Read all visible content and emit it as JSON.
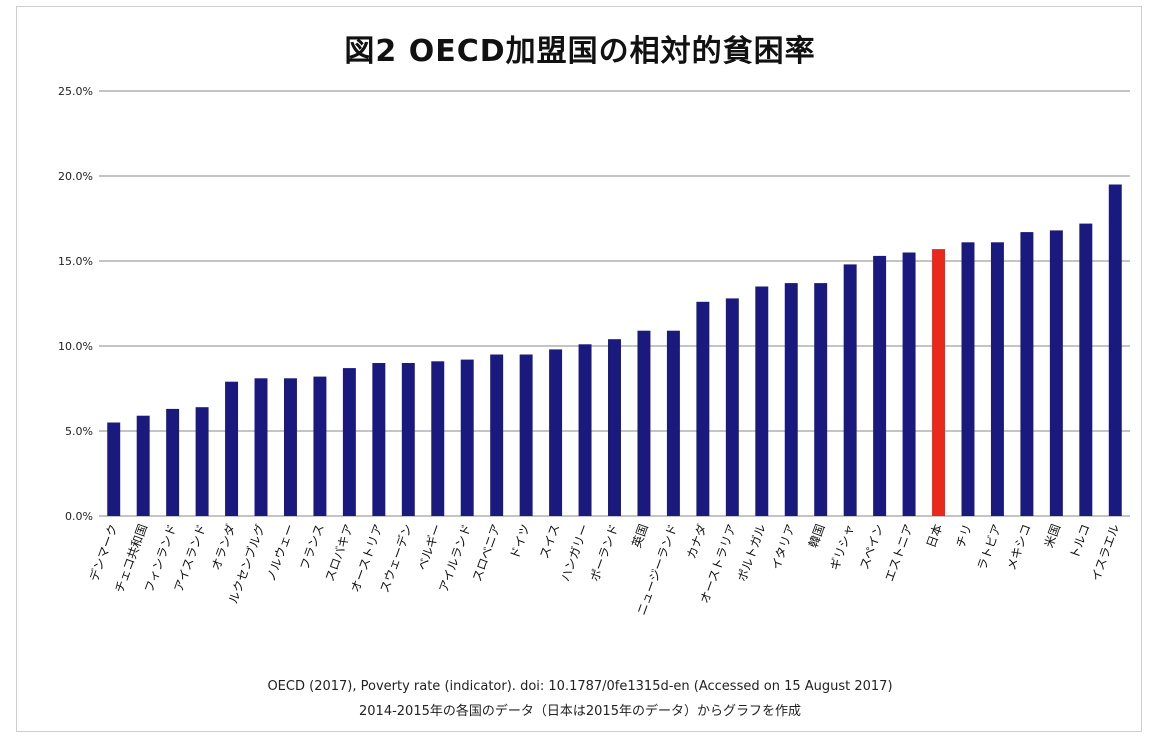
{
  "chart_data": {
    "type": "bar",
    "title": "図2 OECD加盟国の相対的貧困率",
    "xlabel": "",
    "ylabel": "",
    "ylim": [
      0,
      25
    ],
    "yticks": [
      0,
      5,
      10,
      15,
      20,
      25
    ],
    "ytick_labels": [
      "0.0%",
      "5.0%",
      "10.0%",
      "15.0%",
      "20.0%",
      "25.0%"
    ],
    "grid": true,
    "categories": [
      "デンマーク",
      "チェコ共和国",
      "フィンランド",
      "アイスランド",
      "オランダ",
      "ルクセンブルグ",
      "ノルウェー",
      "フランス",
      "スロバキア",
      "オーストリア",
      "スウェーデン",
      "ベルギー",
      "アイルランド",
      "スロベニア",
      "ドイツ",
      "スイス",
      "ハンガリー",
      "ポーランド",
      "英国",
      "ニュージーランド",
      "カナダ",
      "オーストラリア",
      "ポルトガル",
      "イタリア",
      "韓国",
      "ギリシャ",
      "スペイン",
      "エストニア",
      "日本",
      "チリ",
      "ラトビア",
      "メキシコ",
      "米国",
      "トルコ",
      "イスラエル"
    ],
    "values": [
      5.5,
      5.9,
      6.3,
      6.4,
      7.9,
      8.1,
      8.1,
      8.2,
      8.7,
      9.0,
      9.0,
      9.1,
      9.2,
      9.5,
      9.5,
      9.8,
      10.1,
      10.4,
      10.9,
      10.9,
      12.6,
      12.8,
      13.5,
      13.7,
      13.7,
      14.8,
      15.3,
      15.5,
      15.7,
      16.1,
      16.1,
      16.7,
      16.8,
      17.2,
      19.5
    ],
    "colors": {
      "default": "#1a1a7e",
      "highlight": "#e8291c",
      "grid": "#a0a0a0"
    },
    "highlight_category": "日本"
  },
  "source": {
    "line1": "OECD (2017), Poverty rate (indicator). doi: 10.1787/0fe1315d-en (Accessed on 15 August 2017)",
    "line2": "2014-2015年の各国のデータ（日本は2015年のデータ）からグラフを作成"
  }
}
